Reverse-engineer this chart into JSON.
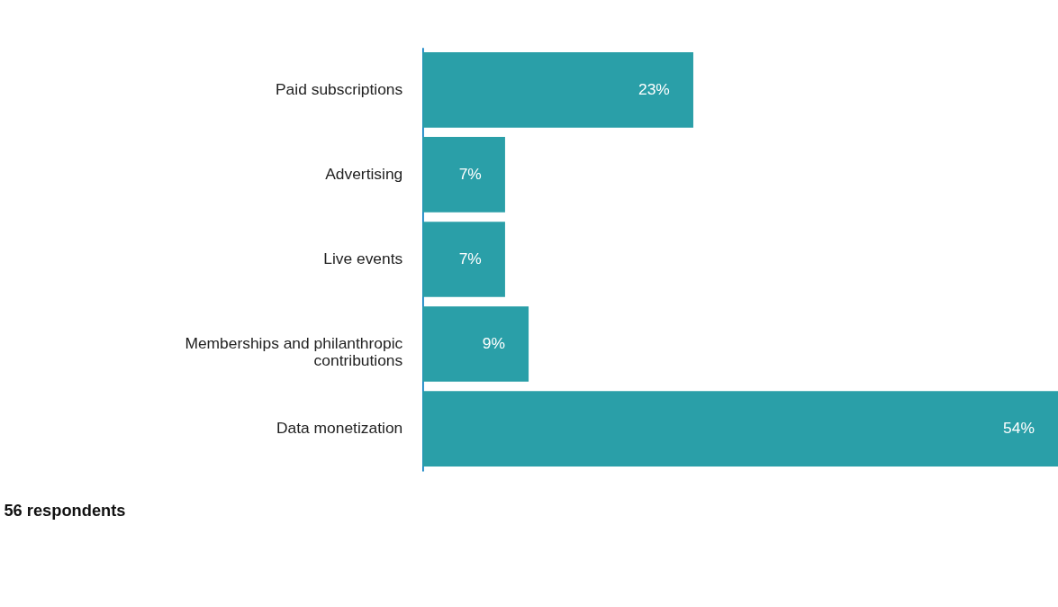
{
  "chart_data": {
    "type": "bar",
    "orientation": "horizontal",
    "categories": [
      "Paid subscriptions",
      "Advertising",
      "Live events",
      "Memberships and philanthropic contributions",
      "Data monetization"
    ],
    "values": [
      23,
      7,
      7,
      9,
      54
    ],
    "value_labels": [
      "23%",
      "7%",
      "7%",
      "9%",
      "54%"
    ],
    "color": "#2a9fa8",
    "annotations": [
      "56 respondents"
    ]
  }
}
